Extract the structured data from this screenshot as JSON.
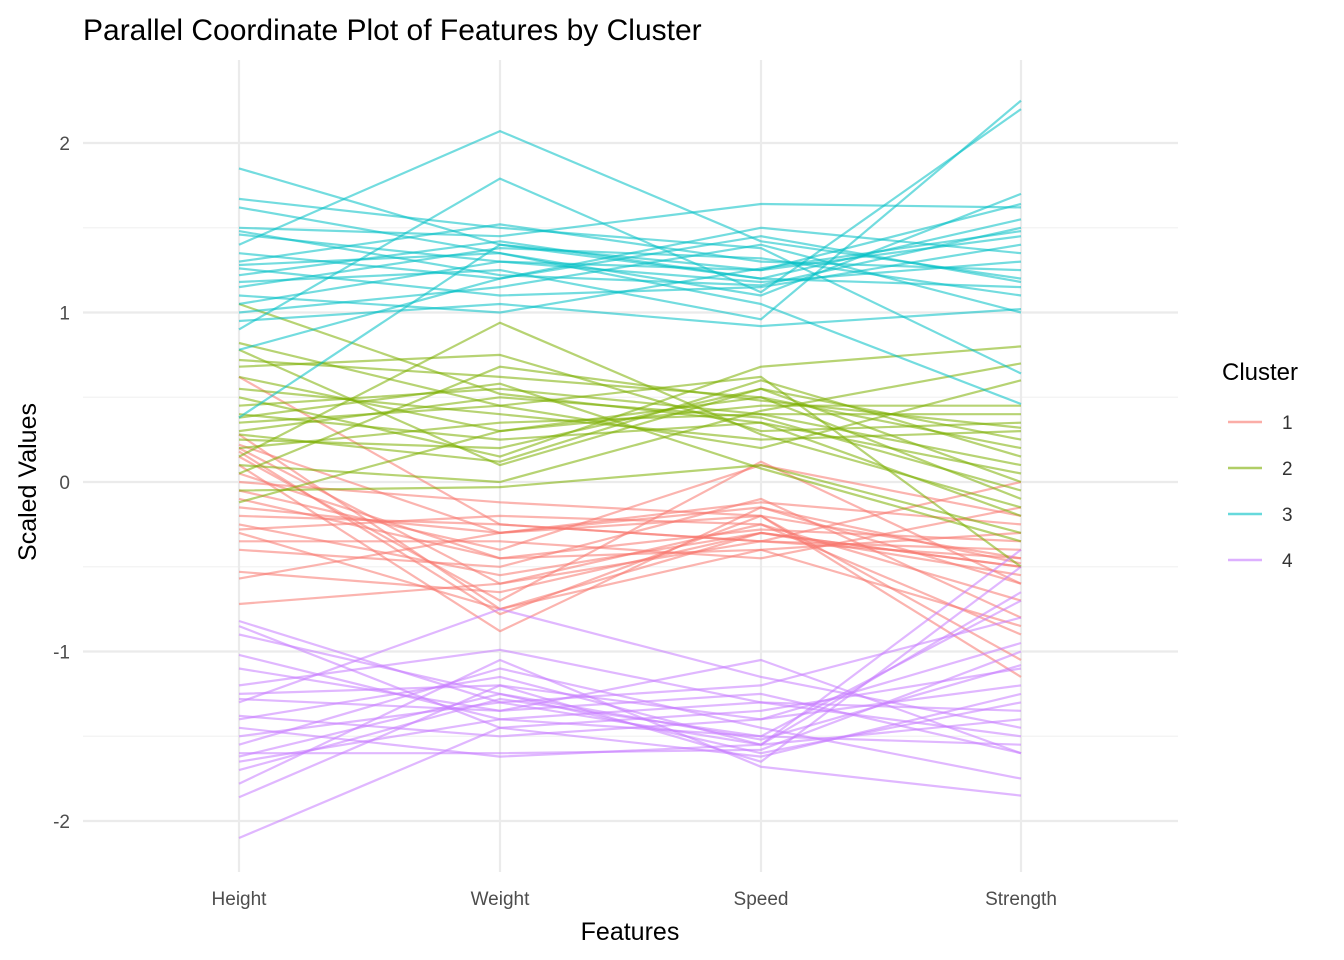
{
  "chart_data": {
    "type": "parallel-coordinates",
    "title": "Parallel Coordinate Plot of Features by Cluster",
    "xlabel": "Features",
    "ylabel": "Scaled Values",
    "categories": [
      "Height",
      "Weight",
      "Speed",
      "Strength"
    ],
    "ylim": [
      -2.25,
      2.5
    ],
    "yticks": [
      -2,
      -1,
      0,
      1,
      2
    ],
    "ytick_labels": [
      "-2",
      "-1",
      "0",
      "1",
      "2"
    ],
    "grid": true,
    "legend": {
      "title": "Cluster",
      "position": "right"
    },
    "series": [
      {
        "name": "1",
        "color": "#F8766D",
        "lines": [
          [
            0.62,
            -0.25,
            -0.35,
            -0.45
          ],
          [
            0.28,
            -0.75,
            -0.3,
            -0.5
          ],
          [
            0.2,
            -0.6,
            -0.25,
            -0.9
          ],
          [
            0.18,
            -0.78,
            -0.2,
            -1.05
          ],
          [
            0.15,
            -0.7,
            0.12,
            -0.6
          ],
          [
            0.1,
            -0.88,
            -0.15,
            -0.48
          ],
          [
            0.05,
            -0.45,
            -0.4,
            -0.3
          ],
          [
            -0.05,
            -0.4,
            0.1,
            -0.2
          ],
          [
            -0.15,
            -0.3,
            -0.2,
            -0.45
          ],
          [
            -0.2,
            -0.25,
            -0.35,
            -0.4
          ],
          [
            -0.25,
            -0.55,
            -0.3,
            -0.5
          ],
          [
            -0.28,
            -0.2,
            -0.25,
            -0.7
          ],
          [
            -0.35,
            -0.35,
            -0.45,
            -0.15
          ],
          [
            -0.4,
            -0.5,
            -0.1,
            -0.8
          ],
          [
            -0.53,
            -0.65,
            -0.3,
            -0.55
          ],
          [
            -0.57,
            -0.3,
            -0.12,
            -0.25
          ],
          [
            -0.72,
            -0.6,
            -0.35,
            0.0
          ],
          [
            0.0,
            -0.12,
            -0.2,
            -1.15
          ],
          [
            -0.1,
            -0.45,
            -0.28,
            -0.35
          ],
          [
            0.22,
            -0.3,
            -0.15,
            -0.6
          ],
          [
            -0.3,
            -0.75,
            -0.4,
            -0.85
          ]
        ]
      },
      {
        "name": "2",
        "color": "#7CAE00",
        "lines": [
          [
            1.05,
            0.52,
            0.35,
            0.05
          ],
          [
            0.82,
            0.45,
            0.62,
            -0.5
          ],
          [
            0.78,
            0.1,
            0.55,
            0.0
          ],
          [
            0.72,
            0.62,
            0.5,
            -0.1
          ],
          [
            0.68,
            0.75,
            0.3,
            0.35
          ],
          [
            0.62,
            0.3,
            0.45,
            0.45
          ],
          [
            0.55,
            0.4,
            0.25,
            0.3
          ],
          [
            0.5,
            0.15,
            0.68,
            0.8
          ],
          [
            0.45,
            0.55,
            0.4,
            0.1
          ],
          [
            0.4,
            0.25,
            0.35,
            -0.2
          ],
          [
            0.35,
            0.45,
            0.2,
            0.6
          ],
          [
            0.3,
            0.5,
            0.38,
            -0.05
          ],
          [
            0.25,
            0.2,
            0.55,
            0.25
          ],
          [
            0.2,
            0.35,
            0.4,
            0.4
          ],
          [
            0.15,
            0.94,
            0.28,
            -0.15
          ],
          [
            0.1,
            0.0,
            0.42,
            0.7
          ],
          [
            0.05,
            0.68,
            0.48,
            0.32
          ],
          [
            -0.05,
            -0.03,
            0.1,
            -0.3
          ],
          [
            -0.12,
            0.3,
            0.5,
            0.2
          ],
          [
            0.38,
            0.58,
            0.08,
            -0.35
          ],
          [
            0.28,
            0.12,
            0.6,
            0.15
          ]
        ]
      },
      {
        "name": "3",
        "color": "#00BFC4",
        "lines": [
          [
            1.85,
            1.4,
            1.2,
            1.15
          ],
          [
            1.67,
            1.5,
            1.38,
            0.64
          ],
          [
            1.62,
            1.35,
            1.1,
            1.7
          ],
          [
            1.5,
            1.45,
            1.64,
            1.62
          ],
          [
            1.46,
            1.3,
            1.25,
            1.45
          ],
          [
            1.4,
            2.07,
            1.42,
            1.2
          ],
          [
            1.35,
            1.2,
            1.5,
            1.35
          ],
          [
            1.3,
            1.52,
            1.3,
            1.25
          ],
          [
            1.26,
            1.1,
            1.15,
            1.4
          ],
          [
            1.22,
            1.42,
            1.2,
            1.55
          ],
          [
            1.18,
            1.25,
            0.96,
            2.25
          ],
          [
            1.15,
            1.38,
            1.32,
            1.1
          ],
          [
            1.1,
            1.0,
            1.26,
            1.48
          ],
          [
            1.05,
            1.3,
            1.18,
            1.3
          ],
          [
            1.0,
            1.15,
            1.4,
            1.0
          ],
          [
            0.95,
            1.05,
            0.92,
            1.02
          ],
          [
            0.9,
            1.79,
            1.12,
            2.2
          ],
          [
            0.78,
            1.2,
            1.45,
            1.18
          ],
          [
            0.38,
            1.4,
            1.25,
            1.64
          ],
          [
            1.28,
            1.35,
            1.05,
            0.46
          ],
          [
            1.48,
            1.22,
            1.16,
            1.5
          ]
        ]
      },
      {
        "name": "4",
        "color": "#C77CFF",
        "lines": [
          [
            -0.82,
            -1.3,
            -1.55,
            -0.65
          ],
          [
            -0.85,
            -1.45,
            -1.35,
            -1.1
          ],
          [
            -0.9,
            -1.25,
            -1.6,
            -1.3
          ],
          [
            -1.02,
            -1.4,
            -1.5,
            -0.7
          ],
          [
            -1.2,
            -0.99,
            -1.3,
            -1.5
          ],
          [
            -1.25,
            -1.2,
            -1.65,
            -0.5
          ],
          [
            -1.28,
            -1.35,
            -1.05,
            -1.6
          ],
          [
            -1.38,
            -1.5,
            -1.4,
            -1.2
          ],
          [
            -1.4,
            -1.15,
            -1.55,
            -1.4
          ],
          [
            -1.5,
            -1.3,
            -1.2,
            -0.8
          ],
          [
            -1.55,
            -1.1,
            -1.45,
            -1.75
          ],
          [
            -1.6,
            -1.6,
            -1.58,
            -1.0
          ],
          [
            -1.65,
            -1.4,
            -1.3,
            -1.35
          ],
          [
            -1.7,
            -1.28,
            -1.5,
            -1.55
          ],
          [
            -1.78,
            -1.05,
            -1.68,
            -1.85
          ],
          [
            -1.86,
            -1.2,
            -1.4,
            -0.95
          ],
          [
            -2.1,
            -1.45,
            -1.62,
            -1.25
          ],
          [
            -1.3,
            -0.75,
            -1.15,
            -1.45
          ],
          [
            -1.45,
            -1.62,
            -1.55,
            -0.4
          ],
          [
            -1.1,
            -1.35,
            -1.25,
            -1.6
          ],
          [
            -1.62,
            -1.25,
            -1.52,
            -1.08
          ]
        ]
      }
    ]
  }
}
